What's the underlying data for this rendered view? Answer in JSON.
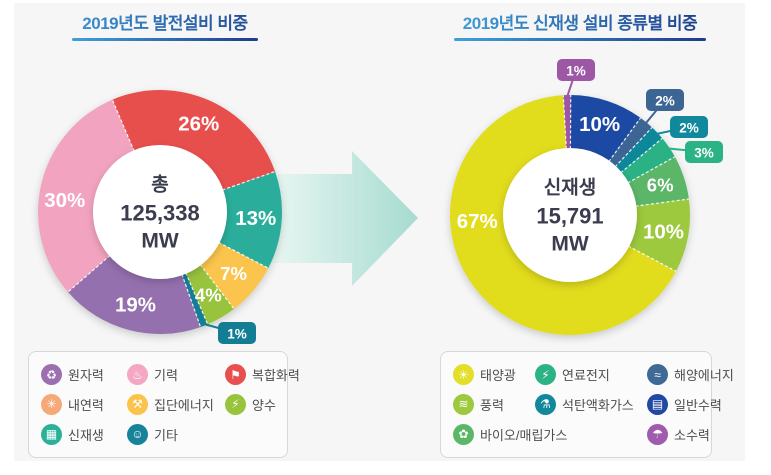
{
  "page": {
    "panel_bg": "#F6F6F6",
    "title_color": "#2B5CA6",
    "title_gradient_from": "#3FA0DA",
    "title_gradient_to": "#1E3C8C",
    "arrow": {
      "name": "transition-arrow",
      "color_from": "#F2FAF7",
      "color_to": "#A6DBD0"
    }
  },
  "chart_data": [
    {
      "type": "pie",
      "subtype": "donut",
      "title": "2019년도 발전설비 비중",
      "center_label": [
        "총",
        "125,338",
        "MW"
      ],
      "total": "125,338 MW",
      "legend_position": "below",
      "slices": [
        {
          "name": "복합화력",
          "label": "26%",
          "value": 26,
          "color": "#E7504E",
          "label_style": "inside"
        },
        {
          "name": "신재생",
          "label": "13%",
          "value": 13,
          "color": "#2BAE9B",
          "label_style": "inside"
        },
        {
          "name": "집단에너지",
          "label": "7%",
          "value": 7,
          "color": "#FBC54D",
          "label_style": "inside"
        },
        {
          "name": "양수",
          "label": "4%",
          "value": 4,
          "color": "#98C33D",
          "label_style": "inside"
        },
        {
          "name": "기타",
          "label": "1%",
          "value": 1,
          "color": "#137D96",
          "label_style": "callout"
        },
        {
          "name": "원자력",
          "label": "19%",
          "value": 19,
          "color": "#9470AE",
          "label_style": "inside"
        },
        {
          "name": "기력",
          "label": "30%",
          "value": 30,
          "color": "#F2A3BF",
          "label_style": "inside"
        }
      ],
      "legend": [
        {
          "label": "원자력",
          "color": "#9B6FB0",
          "icon": "recycle-icon",
          "glyph": "♻"
        },
        {
          "label": "기력",
          "color": "#F5A6C2",
          "icon": "flame-icon",
          "glyph": "♨"
        },
        {
          "label": "복합화력",
          "color": "#E7504E",
          "icon": "chimney-flag-icon",
          "glyph": "⚑"
        },
        {
          "label": "내연력",
          "color": "#F5A878",
          "icon": "atom-icon",
          "glyph": "✳"
        },
        {
          "label": "집단에너지",
          "color": "#FBC34C",
          "icon": "pipe-valve-icon",
          "glyph": "⚒"
        },
        {
          "label": "양수",
          "color": "#98C33D",
          "icon": "leaf-bolt-icon",
          "glyph": "⚡"
        },
        {
          "label": "신재생",
          "color": "#2BB19A",
          "icon": "solar-panel-icon",
          "glyph": "▦"
        },
        {
          "label": "기타",
          "color": "#16839B",
          "icon": "misc-face-icon",
          "glyph": "☺"
        }
      ]
    },
    {
      "type": "pie",
      "subtype": "donut",
      "title": "2019년도 신재생 설비 종류별 비중",
      "center_label": [
        "신재생",
        "15,791",
        "MW"
      ],
      "total": "15,791 MW",
      "legend_position": "below",
      "slices": [
        {
          "name": "소수력",
          "label": "1%",
          "value": 1,
          "color": "#9C57A5",
          "label_style": "callout"
        },
        {
          "name": "일반수력",
          "label": "10%",
          "value": 10,
          "color": "#1C49A3",
          "label_style": "inside"
        },
        {
          "name": "해양에너지",
          "label": "2%",
          "value": 2,
          "color": "#3D6594",
          "label_style": "callout"
        },
        {
          "name": "석탄액화가스",
          "label": "2%",
          "value": 2,
          "color": "#11889B",
          "label_style": "callout"
        },
        {
          "name": "연료전지",
          "label": "3%",
          "value": 3,
          "color": "#2BB285",
          "label_style": "callout"
        },
        {
          "name": "바이오/매립가스",
          "label": "6%",
          "value": 6,
          "color": "#5CB668",
          "label_style": "inside"
        },
        {
          "name": "풍력",
          "label": "10%",
          "value": 10,
          "color": "#9CC93E",
          "label_style": "inside"
        },
        {
          "name": "태양광",
          "label": "67%",
          "value": 67,
          "color": "#E1DC1E",
          "label_style": "inside"
        }
      ],
      "legend": [
        {
          "label": "태양광",
          "color": "#E3DE27",
          "icon": "sun-icon",
          "glyph": "☀"
        },
        {
          "label": "연료전지",
          "color": "#2BB285",
          "icon": "fuel-cell-icon",
          "glyph": "⚡"
        },
        {
          "label": "해양에너지",
          "color": "#3F6A96",
          "icon": "wave-icon",
          "glyph": "≈"
        },
        {
          "label": "풍력",
          "color": "#9CC93E",
          "icon": "wind-icon",
          "glyph": "≋"
        },
        {
          "label": "석탄액화가스",
          "color": "#11889B",
          "icon": "gas-pump-icon",
          "glyph": "⚗"
        },
        {
          "label": "일반수력",
          "color": "#2149A4",
          "icon": "dam-icon",
          "glyph": "▤"
        },
        {
          "label": "바이오/매립가스",
          "color": "#5CB668",
          "icon": "biogas-icon",
          "glyph": "✿"
        },
        {
          "label": "소수력",
          "color": "#9F5BAD",
          "icon": "faucet-icon",
          "glyph": "☂"
        }
      ]
    }
  ]
}
